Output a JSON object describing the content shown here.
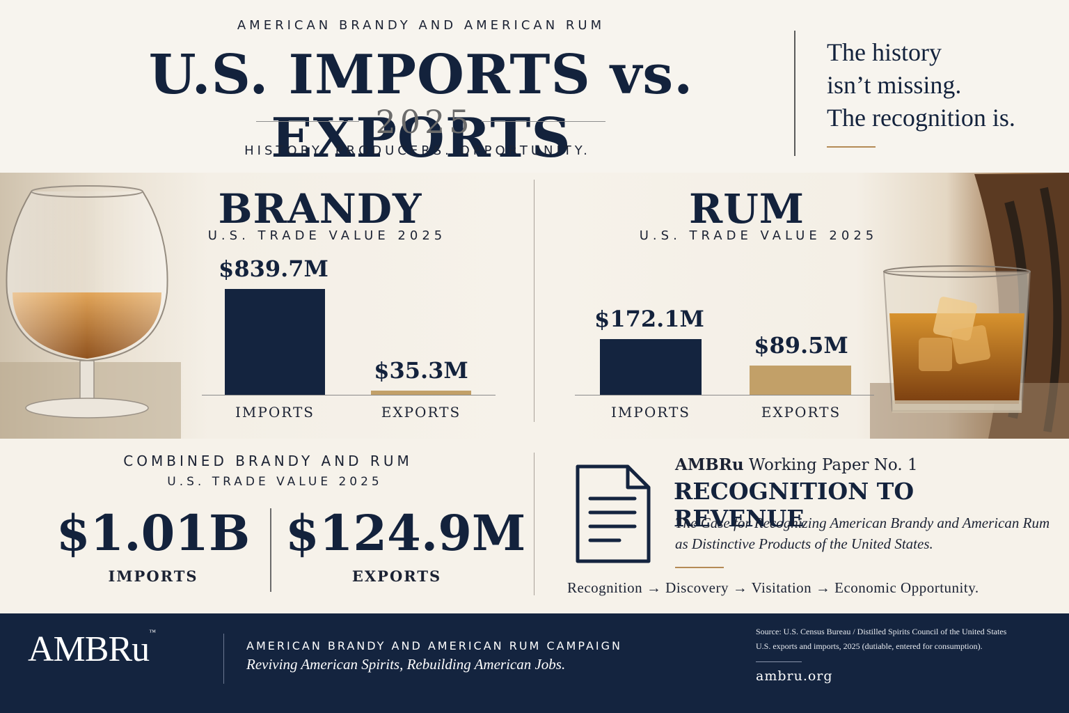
{
  "header": {
    "kicker": "AMERICAN BRANDY AND AMERICAN RUM",
    "title": "U.S. IMPORTS vs. EXPORTS",
    "year": "2025",
    "subtitle": "HISTORY. PRODUCERS. OPPORTUNITY.",
    "quote": [
      "The history",
      "isn’t missing.",
      "The recognition is."
    ]
  },
  "colors": {
    "navy": "#14243f",
    "gold": "#c2a068",
    "cream": "#f6f2ea",
    "accent_rule": "#b48a55"
  },
  "icons": {
    "brandy_glass": "snifter-glass-icon",
    "rum_glass": "rocks-glass-icon",
    "barrel": "barrel-icon",
    "document": "document-icon"
  },
  "chart_data": [
    {
      "type": "bar",
      "title": "BRANDY",
      "subtitle": "U.S. TRADE VALUE 2025",
      "categories": [
        "IMPORTS",
        "EXPORTS"
      ],
      "values": [
        839.7,
        35.3
      ],
      "value_labels": [
        "$839.7M",
        "$35.3M"
      ],
      "colors": [
        "#14243f",
        "#c2a068"
      ],
      "ylim": [
        0,
        1000
      ]
    },
    {
      "type": "bar",
      "title": "RUM",
      "subtitle": "U.S. TRADE VALUE 2025",
      "categories": [
        "IMPORTS",
        "EXPORTS"
      ],
      "values": [
        172.1,
        89.5
      ],
      "value_labels": [
        "$172.1M",
        "$89.5M"
      ],
      "colors": [
        "#14243f",
        "#c2a068"
      ],
      "ylim": [
        0,
        300
      ]
    }
  ],
  "combined": {
    "kicker": "COMBINED BRANDY AND RUM",
    "subtitle": "U.S. TRADE VALUE 2025",
    "imports_value": "$1.01B",
    "imports_label": "IMPORTS",
    "exports_value": "$124.9M",
    "exports_label": "EXPORTS"
  },
  "paper": {
    "org": "AMBRu",
    "series": " Working Paper No. 1",
    "title": "RECOGNITION TO REVENUE",
    "description": "The Case for Recognizing American Brandy and American Rum as Distinctive Products of the United States.",
    "flow": "Recognition → Discovery → Visitation → Economic Opportunity."
  },
  "footer": {
    "logo": "AMBRu",
    "trademark": "™",
    "campaign": "AMERICAN BRANDY AND AMERICAN RUM CAMPAIGN",
    "tagline": "Reviving American Spirits, Rebuilding American Jobs.",
    "source_line_1": "Source: U.S. Census Bureau / Distilled Spirits Council of the United States",
    "source_line_2": "U.S. exports and imports, 2025 (dutiable, entered for consumption).",
    "website": "ambru.org"
  }
}
